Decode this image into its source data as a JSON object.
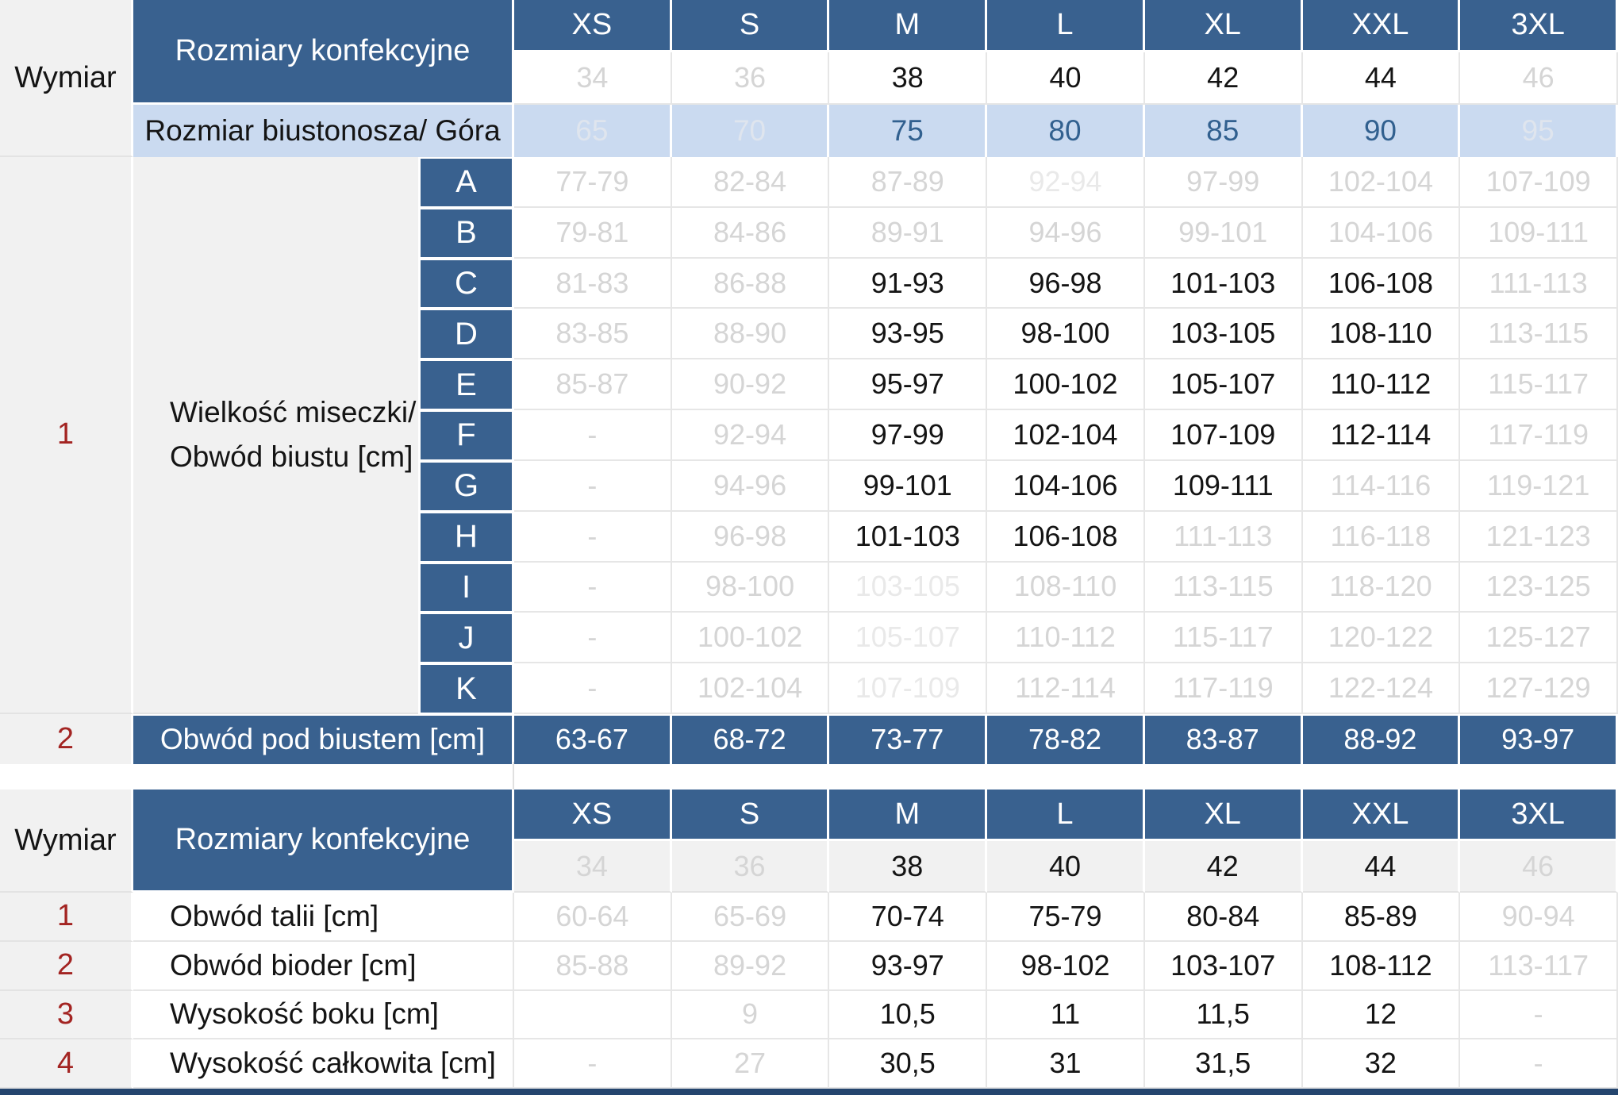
{
  "colors": {
    "header_blue": "#39618f",
    "light_blue": "#cadaf0",
    "panel_grey": "#f1f1f1",
    "accent_red": "#a32422",
    "muted_grey_text": "#d5d5d5",
    "faint_grey_text": "#e9e9e9",
    "blue_text": "#31608f",
    "grid_line": "#e6e6e6",
    "bottom_bar": "#24456e"
  },
  "table1": {
    "corner_label": "Wymiar",
    "header_label": "Rozmiary konfekcyjne",
    "sizes": [
      "XS",
      "S",
      "M",
      "L",
      "XL",
      "XXL",
      "3XL"
    ],
    "confection_numbers": [
      {
        "v": "34",
        "s": "g"
      },
      {
        "v": "36",
        "s": "g"
      },
      {
        "v": "38",
        "s": "b"
      },
      {
        "v": "40",
        "s": "b"
      },
      {
        "v": "42",
        "s": "b"
      },
      {
        "v": "44",
        "s": "b"
      },
      {
        "v": "46",
        "s": "g"
      }
    ],
    "bra_band_row": {
      "label": "Rozmiar biustonosza/ Góra",
      "values": [
        {
          "v": "65",
          "s": "w"
        },
        {
          "v": "70",
          "s": "w"
        },
        {
          "v": "75",
          "s": "u"
        },
        {
          "v": "80",
          "s": "u"
        },
        {
          "v": "85",
          "s": "u"
        },
        {
          "v": "90",
          "s": "u"
        },
        {
          "v": "95",
          "s": "w"
        }
      ]
    },
    "cups": {
      "num": "1",
      "label_line1": "Wielkość miseczki/",
      "label_line2": "Obwód biustu [cm]"
    },
    "cup_rows": [
      {
        "cup": "A",
        "cells": [
          {
            "v": "77-79",
            "s": "g"
          },
          {
            "v": "82-84",
            "s": "g"
          },
          {
            "v": "87-89",
            "s": "g"
          },
          {
            "v": "92-94",
            "s": "f"
          },
          {
            "v": "97-99",
            "s": "g"
          },
          {
            "v": "102-104",
            "s": "g"
          },
          {
            "v": "107-109",
            "s": "g"
          }
        ]
      },
      {
        "cup": "B",
        "cells": [
          {
            "v": "79-81",
            "s": "g"
          },
          {
            "v": "84-86",
            "s": "g"
          },
          {
            "v": "89-91",
            "s": "g"
          },
          {
            "v": "94-96",
            "s": "g"
          },
          {
            "v": "99-101",
            "s": "g"
          },
          {
            "v": "104-106",
            "s": "g"
          },
          {
            "v": "109-111",
            "s": "g"
          }
        ]
      },
      {
        "cup": "C",
        "cells": [
          {
            "v": "81-83",
            "s": "g"
          },
          {
            "v": "86-88",
            "s": "g"
          },
          {
            "v": "91-93",
            "s": "b"
          },
          {
            "v": "96-98",
            "s": "b"
          },
          {
            "v": "101-103",
            "s": "b"
          },
          {
            "v": "106-108",
            "s": "b"
          },
          {
            "v": "111-113",
            "s": "g"
          }
        ]
      },
      {
        "cup": "D",
        "cells": [
          {
            "v": "83-85",
            "s": "g"
          },
          {
            "v": "88-90",
            "s": "g"
          },
          {
            "v": "93-95",
            "s": "b"
          },
          {
            "v": "98-100",
            "s": "b"
          },
          {
            "v": "103-105",
            "s": "b"
          },
          {
            "v": "108-110",
            "s": "b"
          },
          {
            "v": "113-115",
            "s": "g"
          }
        ]
      },
      {
        "cup": "E",
        "cells": [
          {
            "v": "85-87",
            "s": "g"
          },
          {
            "v": "90-92",
            "s": "g"
          },
          {
            "v": "95-97",
            "s": "b"
          },
          {
            "v": "100-102",
            "s": "b"
          },
          {
            "v": "105-107",
            "s": "b"
          },
          {
            "v": "110-112",
            "s": "b"
          },
          {
            "v": "115-117",
            "s": "g"
          }
        ]
      },
      {
        "cup": "F",
        "cells": [
          {
            "v": "-",
            "s": "g"
          },
          {
            "v": "92-94",
            "s": "g"
          },
          {
            "v": "97-99",
            "s": "b"
          },
          {
            "v": "102-104",
            "s": "b"
          },
          {
            "v": "107-109",
            "s": "b"
          },
          {
            "v": "112-114",
            "s": "b"
          },
          {
            "v": "117-119",
            "s": "g"
          }
        ]
      },
      {
        "cup": "G",
        "cells": [
          {
            "v": "-",
            "s": "g"
          },
          {
            "v": "94-96",
            "s": "g"
          },
          {
            "v": "99-101",
            "s": "b"
          },
          {
            "v": "104-106",
            "s": "b"
          },
          {
            "v": "109-111",
            "s": "b"
          },
          {
            "v": "114-116",
            "s": "g"
          },
          {
            "v": "119-121",
            "s": "g"
          }
        ]
      },
      {
        "cup": "H",
        "cells": [
          {
            "v": "-",
            "s": "g"
          },
          {
            "v": "96-98",
            "s": "g"
          },
          {
            "v": "101-103",
            "s": "b"
          },
          {
            "v": "106-108",
            "s": "b"
          },
          {
            "v": "111-113",
            "s": "g"
          },
          {
            "v": "116-118",
            "s": "g"
          },
          {
            "v": "121-123",
            "s": "g"
          }
        ]
      },
      {
        "cup": "I",
        "cells": [
          {
            "v": "-",
            "s": "g"
          },
          {
            "v": "98-100",
            "s": "g"
          },
          {
            "v": "103-105",
            "s": "f"
          },
          {
            "v": "108-110",
            "s": "g"
          },
          {
            "v": "113-115",
            "s": "g"
          },
          {
            "v": "118-120",
            "s": "g"
          },
          {
            "v": "123-125",
            "s": "g"
          }
        ]
      },
      {
        "cup": "J",
        "cells": [
          {
            "v": "-",
            "s": "g"
          },
          {
            "v": "100-102",
            "s": "g"
          },
          {
            "v": "105-107",
            "s": "f"
          },
          {
            "v": "110-112",
            "s": "g"
          },
          {
            "v": "115-117",
            "s": "g"
          },
          {
            "v": "120-122",
            "s": "g"
          },
          {
            "v": "125-127",
            "s": "g"
          }
        ]
      },
      {
        "cup": "K",
        "cells": [
          {
            "v": "-",
            "s": "g"
          },
          {
            "v": "102-104",
            "s": "g"
          },
          {
            "v": "107-109",
            "s": "f"
          },
          {
            "v": "112-114",
            "s": "g"
          },
          {
            "v": "117-119",
            "s": "g"
          },
          {
            "v": "122-124",
            "s": "g"
          },
          {
            "v": "127-129",
            "s": "g"
          }
        ]
      }
    ],
    "underbust": {
      "num": "2",
      "label": "Obwód pod biustem [cm]",
      "values": [
        "63-67",
        "68-72",
        "73-77",
        "78-82",
        "83-87",
        "88-92",
        "93-97"
      ]
    }
  },
  "table2": {
    "corner_label": "Wymiar",
    "header_label": "Rozmiary konfekcyjne",
    "sizes": [
      "XS",
      "S",
      "M",
      "L",
      "XL",
      "XXL",
      "3XL"
    ],
    "confection_numbers": [
      {
        "v": "34",
        "s": "g"
      },
      {
        "v": "36",
        "s": "g"
      },
      {
        "v": "38",
        "s": "b"
      },
      {
        "v": "40",
        "s": "b"
      },
      {
        "v": "42",
        "s": "b"
      },
      {
        "v": "44",
        "s": "b"
      },
      {
        "v": "46",
        "s": "g"
      }
    ],
    "rows": [
      {
        "num": "1",
        "label": "Obwód talii [cm]",
        "cells": [
          {
            "v": "60-64",
            "s": "g"
          },
          {
            "v": "65-69",
            "s": "g"
          },
          {
            "v": "70-74",
            "s": "b"
          },
          {
            "v": "75-79",
            "s": "b"
          },
          {
            "v": "80-84",
            "s": "b"
          },
          {
            "v": "85-89",
            "s": "b"
          },
          {
            "v": "90-94",
            "s": "g"
          }
        ]
      },
      {
        "num": "2",
        "label": "Obwód bioder [cm]",
        "cells": [
          {
            "v": "85-88",
            "s": "g"
          },
          {
            "v": "89-92",
            "s": "g"
          },
          {
            "v": "93-97",
            "s": "b"
          },
          {
            "v": "98-102",
            "s": "b"
          },
          {
            "v": "103-107",
            "s": "b"
          },
          {
            "v": "108-112",
            "s": "b"
          },
          {
            "v": "113-117",
            "s": "g"
          }
        ]
      },
      {
        "num": "3",
        "label": "Wysokość boku [cm]",
        "cells": [
          {
            "v": "",
            "s": "g"
          },
          {
            "v": "9",
            "s": "g"
          },
          {
            "v": "10,5",
            "s": "b"
          },
          {
            "v": "11",
            "s": "b"
          },
          {
            "v": "11,5",
            "s": "b"
          },
          {
            "v": "12",
            "s": "b"
          },
          {
            "v": "-",
            "s": "g"
          }
        ]
      },
      {
        "num": "4",
        "label": "Wysokość całkowita [cm]",
        "cells": [
          {
            "v": "-",
            "s": "g"
          },
          {
            "v": "27",
            "s": "g"
          },
          {
            "v": "30,5",
            "s": "b"
          },
          {
            "v": "31",
            "s": "b"
          },
          {
            "v": "31,5",
            "s": "b"
          },
          {
            "v": "32",
            "s": "b"
          },
          {
            "v": "-",
            "s": "g"
          }
        ]
      }
    ]
  }
}
